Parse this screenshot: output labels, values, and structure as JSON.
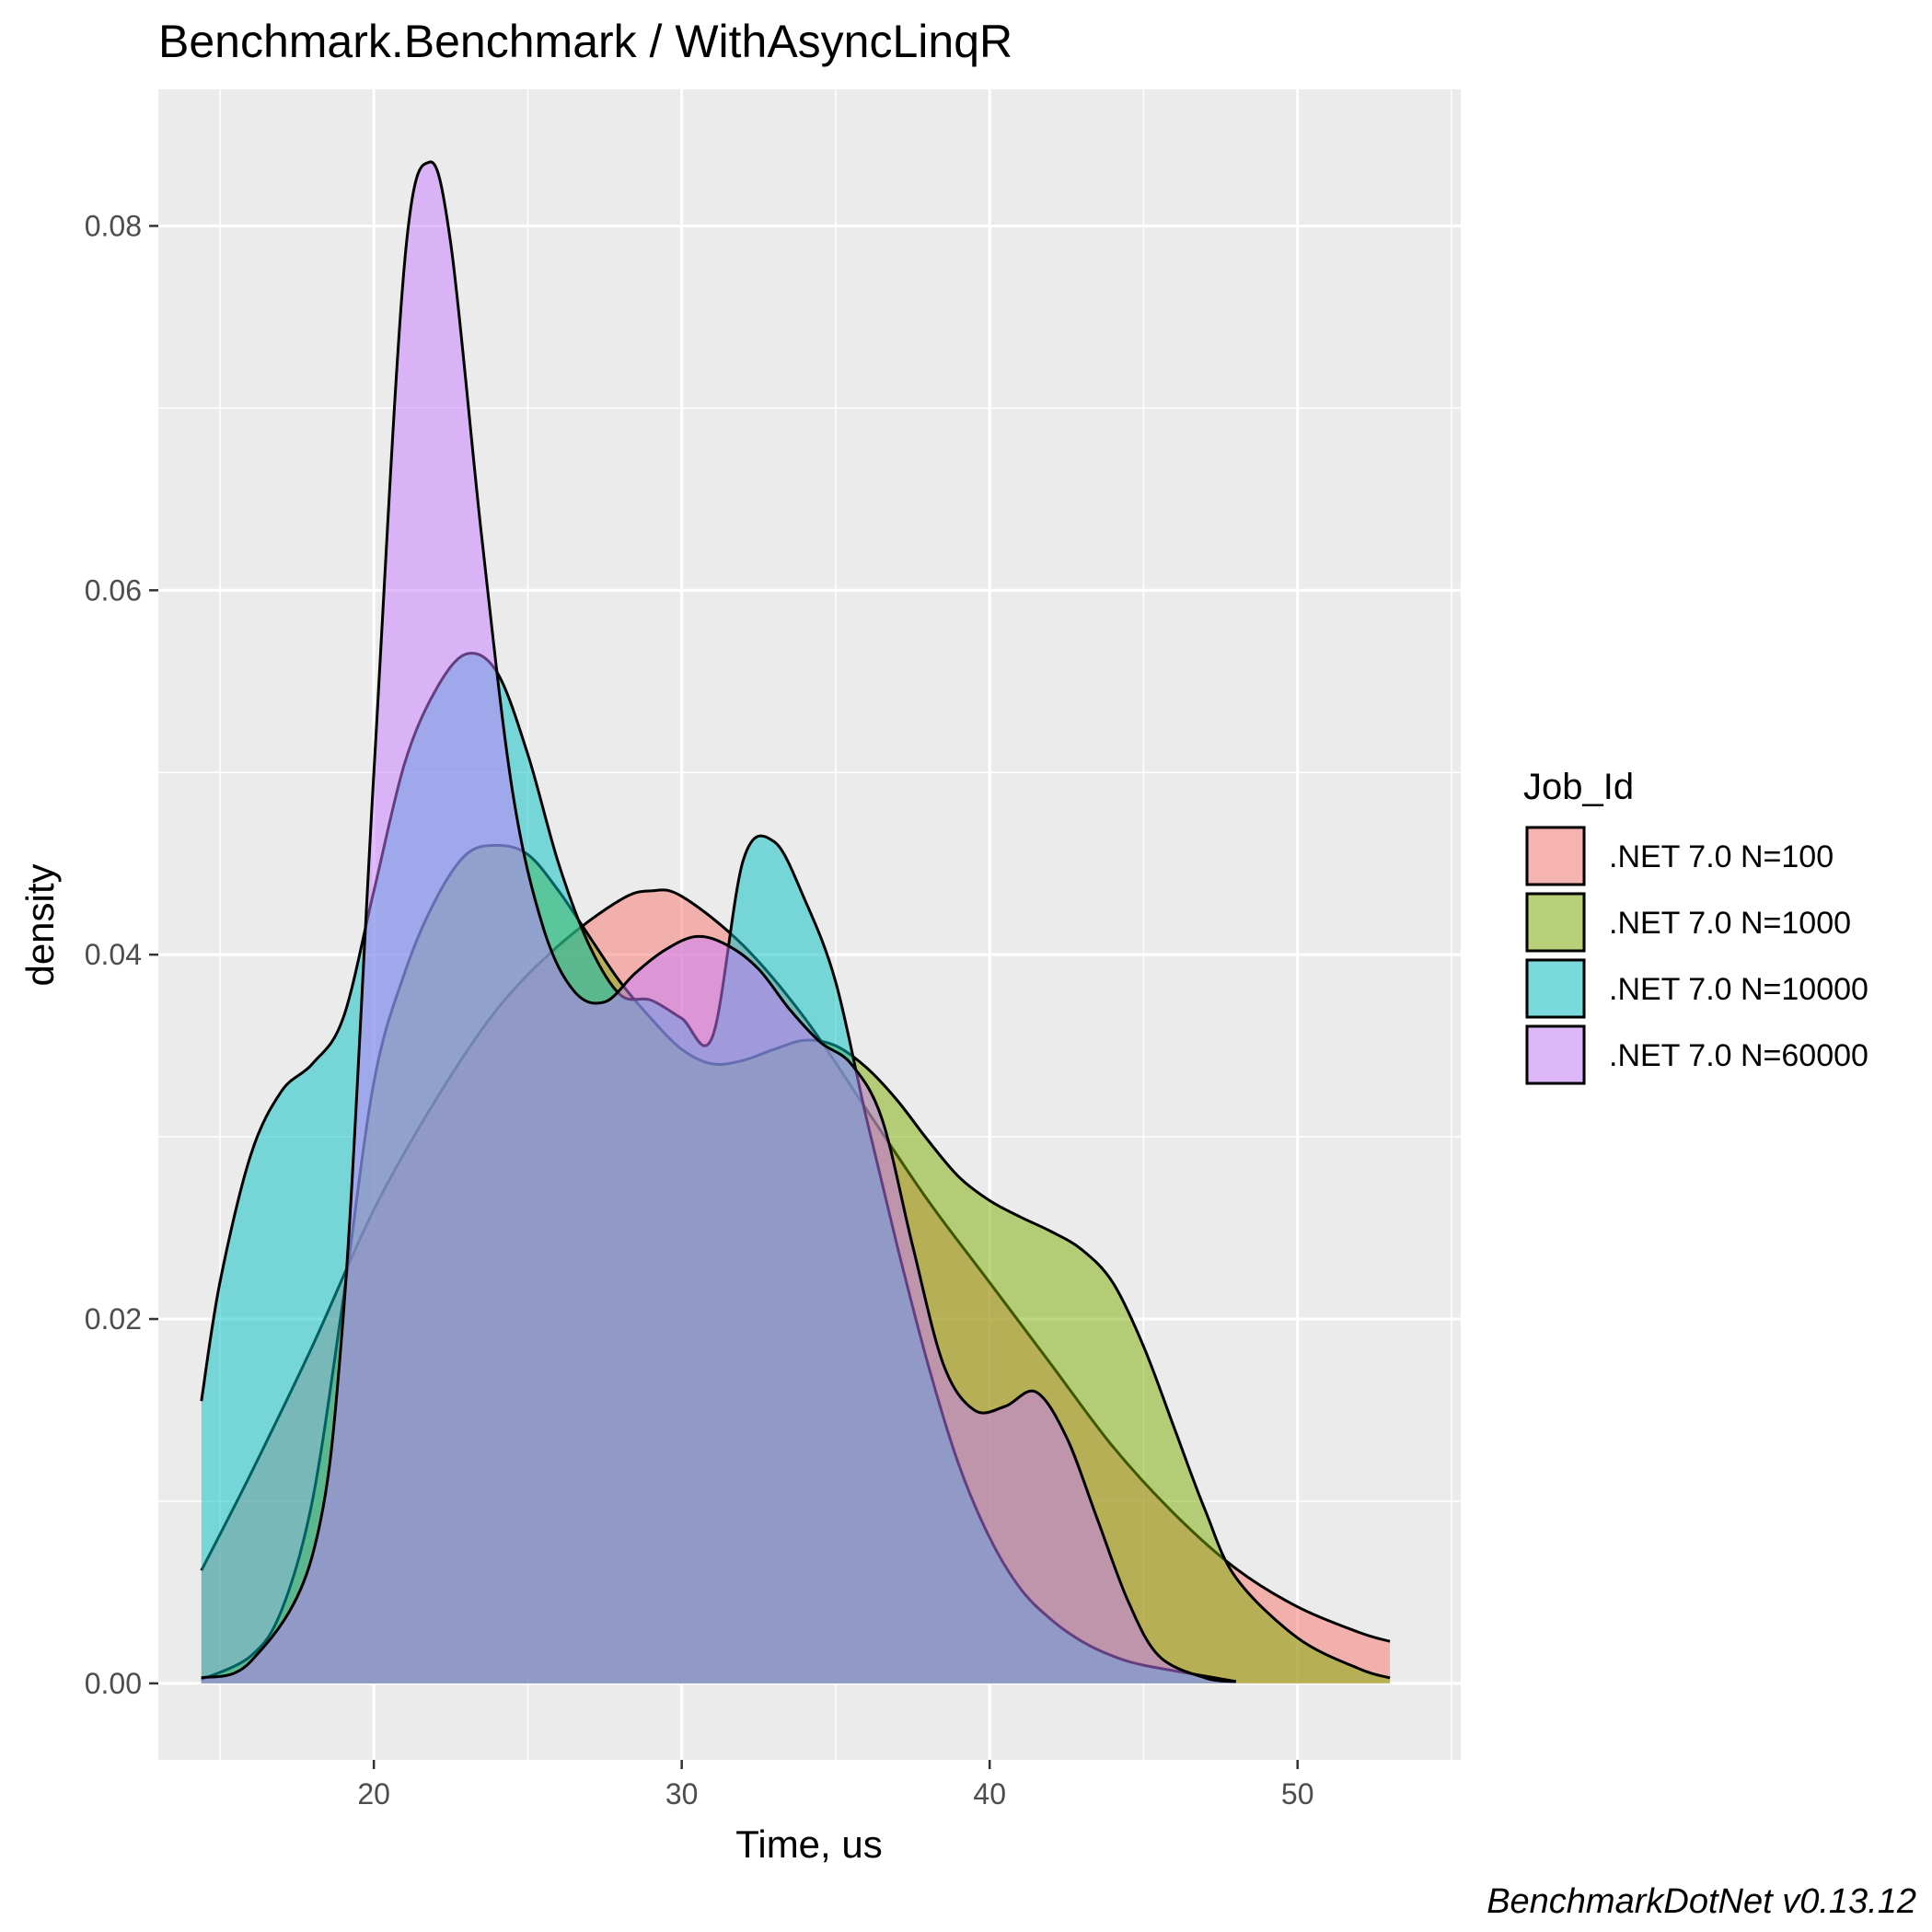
{
  "chart_data": {
    "type": "area",
    "title": "Benchmark.Benchmark / WithAsyncLinqR",
    "xlabel": "Time, us",
    "ylabel": "density",
    "xlim": [
      13,
      55.3
    ],
    "ylim": [
      -0.0042,
      0.0875
    ],
    "x_ticks": [
      20,
      30,
      40,
      50
    ],
    "x_tick_labels": [
      "20",
      "30",
      "40",
      "50"
    ],
    "x_minor_ticks": [
      15,
      25,
      35,
      45,
      55
    ],
    "y_ticks": [
      0.0,
      0.02,
      0.04,
      0.06,
      0.08
    ],
    "y_tick_labels": [
      "0.00",
      "0.02",
      "0.04",
      "0.06",
      "0.08"
    ],
    "y_minor_ticks": [
      0.01,
      0.03,
      0.05,
      0.07
    ],
    "grid": true,
    "legend": {
      "title": "Job_Id",
      "position": "right"
    },
    "caption": "BenchmarkDotNet v0.13.12",
    "series": [
      {
        "name": ".NET 7.0 N=100",
        "color": "#F8766D",
        "points": [
          [
            14.4,
            0.0062
          ],
          [
            16,
            0.0115
          ],
          [
            18,
            0.0185
          ],
          [
            20,
            0.026
          ],
          [
            22,
            0.032
          ],
          [
            24,
            0.037
          ],
          [
            26,
            0.0405
          ],
          [
            28,
            0.043
          ],
          [
            29,
            0.0435
          ],
          [
            30,
            0.0432
          ],
          [
            32,
            0.0405
          ],
          [
            34,
            0.0365
          ],
          [
            36,
            0.0315
          ],
          [
            38,
            0.0265
          ],
          [
            40,
            0.022
          ],
          [
            42,
            0.0175
          ],
          [
            44,
            0.013
          ],
          [
            46,
            0.0093
          ],
          [
            48,
            0.0063
          ],
          [
            50,
            0.0042
          ],
          [
            52,
            0.0028
          ],
          [
            53,
            0.0023
          ]
        ]
      },
      {
        "name": ".NET 7.0 N=1000",
        "color": "#7CAE00",
        "points": [
          [
            14.4,
            0.0002
          ],
          [
            16,
            0.0015
          ],
          [
            17,
            0.004
          ],
          [
            18,
            0.01
          ],
          [
            19,
            0.021
          ],
          [
            20,
            0.033
          ],
          [
            21,
            0.039
          ],
          [
            22,
            0.043
          ],
          [
            23,
            0.0455
          ],
          [
            24,
            0.046
          ],
          [
            25,
            0.0455
          ],
          [
            26,
            0.0435
          ],
          [
            27,
            0.041
          ],
          [
            28,
            0.0385
          ],
          [
            29,
            0.0365
          ],
          [
            30,
            0.0348
          ],
          [
            31,
            0.034
          ],
          [
            32,
            0.0342
          ],
          [
            33,
            0.0348
          ],
          [
            34,
            0.0353
          ],
          [
            35,
            0.035
          ],
          [
            36,
            0.0338
          ],
          [
            37,
            0.032
          ],
          [
            38,
            0.0298
          ],
          [
            39,
            0.0278
          ],
          [
            40,
            0.0265
          ],
          [
            41,
            0.0256
          ],
          [
            42,
            0.0248
          ],
          [
            43,
            0.0238
          ],
          [
            44,
            0.022
          ],
          [
            45,
            0.0185
          ],
          [
            46,
            0.014
          ],
          [
            47,
            0.0095
          ],
          [
            48,
            0.0058
          ],
          [
            50,
            0.0025
          ],
          [
            52,
            0.0008
          ],
          [
            53,
            0.0003
          ]
        ]
      },
      {
        "name": ".NET 7.0 N=10000",
        "color": "#00BFC4",
        "points": [
          [
            14.4,
            0.0155
          ],
          [
            15,
            0.022
          ],
          [
            16,
            0.029
          ],
          [
            17,
            0.0325
          ],
          [
            18,
            0.034
          ],
          [
            19,
            0.0365
          ],
          [
            20,
            0.0435
          ],
          [
            21,
            0.0505
          ],
          [
            22,
            0.0545
          ],
          [
            23,
            0.0565
          ],
          [
            24,
            0.0555
          ],
          [
            25,
            0.051
          ],
          [
            26,
            0.045
          ],
          [
            27,
            0.0405
          ],
          [
            28,
            0.0378
          ],
          [
            29,
            0.0375
          ],
          [
            30,
            0.0365
          ],
          [
            31,
            0.0355
          ],
          [
            32,
            0.0452
          ],
          [
            33,
            0.0462
          ],
          [
            34,
            0.043
          ],
          [
            35,
            0.0385
          ],
          [
            36,
            0.031
          ],
          [
            37,
            0.024
          ],
          [
            38,
            0.0175
          ],
          [
            39,
            0.012
          ],
          [
            40,
            0.008
          ],
          [
            41,
            0.0052
          ],
          [
            42,
            0.0035
          ],
          [
            43,
            0.0023
          ],
          [
            44,
            0.0015
          ],
          [
            45,
            0.001
          ],
          [
            47,
            0.0004
          ],
          [
            48,
            0.0001
          ]
        ]
      },
      {
        "name": ".NET 7.0 N=60000",
        "color": "#C77CFF",
        "points": [
          [
            14.4,
            0.0003
          ],
          [
            16,
            0.0012
          ],
          [
            18,
            0.007
          ],
          [
            19,
            0.02
          ],
          [
            20,
            0.05
          ],
          [
            21,
            0.078
          ],
          [
            21.8,
            0.0835
          ],
          [
            22.5,
            0.079
          ],
          [
            23.5,
            0.063
          ],
          [
            24.5,
            0.049
          ],
          [
            25.5,
            0.0415
          ],
          [
            26.5,
            0.038
          ],
          [
            27.5,
            0.0374
          ],
          [
            28.5,
            0.039
          ],
          [
            29.5,
            0.0403
          ],
          [
            30.5,
            0.041
          ],
          [
            31.5,
            0.0405
          ],
          [
            32.5,
            0.0392
          ],
          [
            33.5,
            0.037
          ],
          [
            34.5,
            0.0352
          ],
          [
            35.5,
            0.034
          ],
          [
            36.5,
            0.031
          ],
          [
            37.5,
            0.024
          ],
          [
            38.5,
            0.0175
          ],
          [
            39.5,
            0.015
          ],
          [
            40.5,
            0.0152
          ],
          [
            41.5,
            0.016
          ],
          [
            42.5,
            0.0135
          ],
          [
            43.5,
            0.009
          ],
          [
            44.5,
            0.0045
          ],
          [
            45.5,
            0.0015
          ],
          [
            47,
            0.0003
          ],
          [
            48,
            0.0001
          ]
        ]
      }
    ]
  }
}
